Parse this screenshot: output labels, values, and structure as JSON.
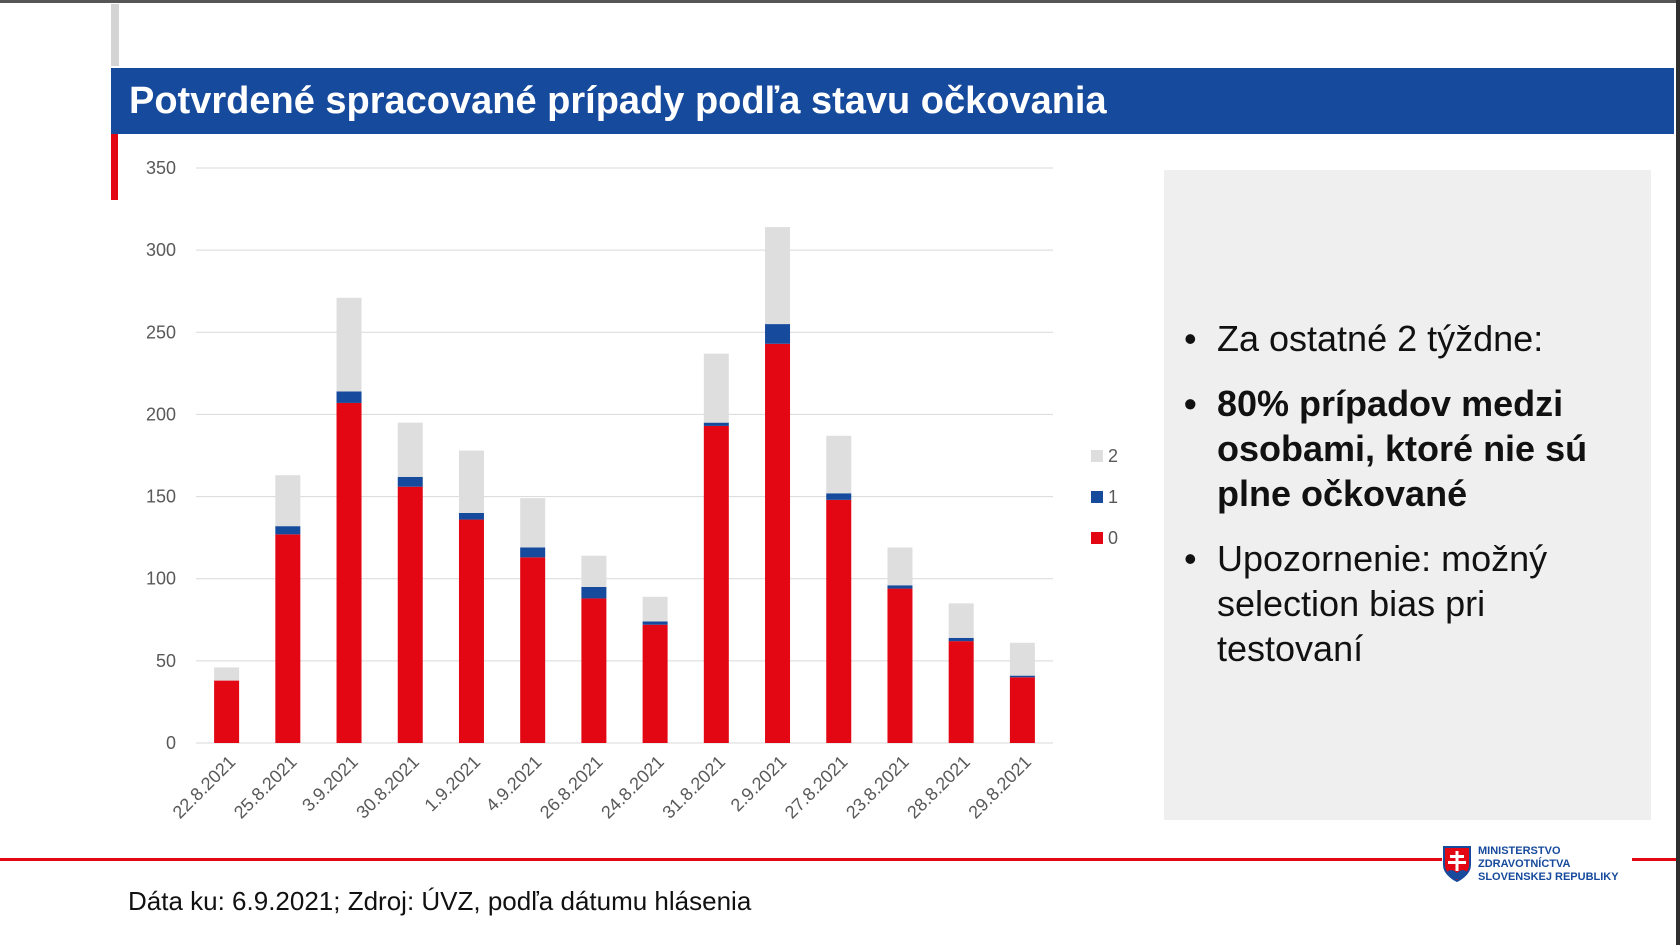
{
  "title": "Potvrdené spracované prípady podľa stavu očkovania",
  "chart_data": {
    "type": "bar",
    "stacked": true,
    "categories": [
      "22.8.2021",
      "25.8.2021",
      "3.9.2021",
      "30.8.2021",
      "1.9.2021",
      "4.9.2021",
      "26.8.2021",
      "24.8.2021",
      "31.8.2021",
      "2.9.2021",
      "27.8.2021",
      "23.8.2021",
      "28.8.2021",
      "29.8.2021"
    ],
    "series": [
      {
        "name": "0",
        "color": "#e30613",
        "values": [
          38,
          127,
          207,
          156,
          136,
          113,
          88,
          72,
          193,
          243,
          148,
          94,
          62,
          40
        ]
      },
      {
        "name": "1",
        "color": "#164a9c",
        "values": [
          0,
          5,
          7,
          6,
          4,
          6,
          7,
          2,
          2,
          12,
          4,
          2,
          2,
          1
        ]
      },
      {
        "name": "2",
        "color": "#dedede",
        "values": [
          8,
          31,
          57,
          33,
          38,
          30,
          19,
          15,
          42,
          59,
          35,
          23,
          21,
          20
        ]
      }
    ],
    "yticks": [
      0,
      50,
      100,
      150,
      200,
      250,
      300,
      350
    ],
    "ylim": [
      0,
      350
    ],
    "legend_labels": [
      "2",
      "1",
      "0"
    ],
    "legend_position": "right"
  },
  "bullets": [
    {
      "text": "Za ostatné 2 týždne:",
      "bold": false
    },
    {
      "text": "80% prípadov medzi osobami, ktoré nie sú plne očkované",
      "bold": true
    },
    {
      "text": "Upozornenie: možný selection bias pri testovaní",
      "bold": false
    }
  ],
  "footer": "Dáta ku: 6.9.2021; Zdroj: ÚVZ, podľa dátumu hlásenia",
  "logo": {
    "line1": "MINISTERSTVO",
    "line2": "ZDRAVOTNÍCTVA",
    "line3": "SLOVENSKEJ REPUBLIKY"
  }
}
